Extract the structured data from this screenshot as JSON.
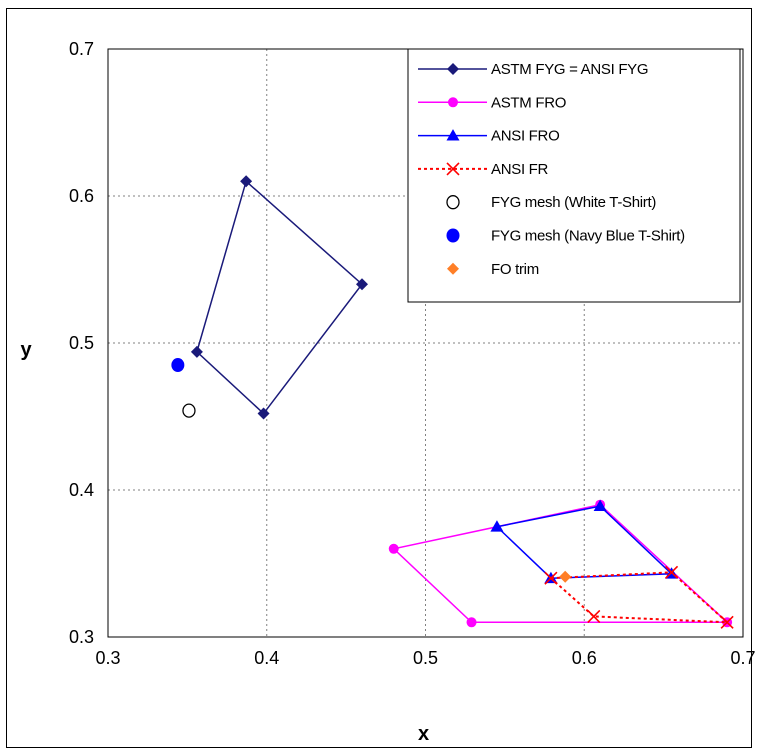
{
  "chart_data": {
    "type": "scatter",
    "xlabel": "x",
    "ylabel": "y",
    "xlim": [
      0.3,
      0.7
    ],
    "ylim": [
      0.3,
      0.7
    ],
    "x_ticks": [
      "0.3",
      "0.4",
      "0.5",
      "0.6",
      "0.7"
    ],
    "y_ticks": [
      "0.3",
      "0.4",
      "0.5",
      "0.6",
      "0.7"
    ],
    "grid": true,
    "legend_position": "top-right",
    "series": [
      {
        "name": "ASTM FYG = ANSI FYG",
        "color": "#1a1a7a",
        "marker": "diamond",
        "line": "solid",
        "x": [
          0.387,
          0.46,
          0.398,
          0.356,
          0.387
        ],
        "y": [
          0.61,
          0.54,
          0.452,
          0.494,
          0.61
        ]
      },
      {
        "name": "ASTM FRO",
        "color": "#ff00ff",
        "marker": "circle",
        "line": "solid",
        "x": [
          0.61,
          0.69,
          0.529,
          0.48,
          0.61
        ],
        "y": [
          0.39,
          0.31,
          0.31,
          0.36,
          0.39
        ]
      },
      {
        "name": "ANSI FRO",
        "color": "#0000ff",
        "marker": "triangle",
        "line": "solid",
        "x": [
          0.545,
          0.61,
          0.655,
          0.579,
          0.545
        ],
        "y": [
          0.375,
          0.389,
          0.343,
          0.34,
          0.375
        ]
      },
      {
        "name": "ANSI FR",
        "color": "#ff0000",
        "marker": "x",
        "line": "dotted",
        "x": [
          0.579,
          0.655,
          0.69,
          0.606,
          0.579
        ],
        "y": [
          0.34,
          0.344,
          0.31,
          0.314,
          0.34
        ]
      },
      {
        "name": "FYG mesh (White T-Shirt)",
        "color": "#000000",
        "marker": "open-circle",
        "line": "none",
        "x": [
          0.351
        ],
        "y": [
          0.454
        ]
      },
      {
        "name": "FYG mesh (Navy Blue T-Shirt)",
        "color": "#0000ff",
        "marker": "filled-circle",
        "line": "none",
        "x": [
          0.344
        ],
        "y": [
          0.485
        ]
      },
      {
        "name": "FO trim",
        "color": "#ff7f27",
        "marker": "diamond",
        "line": "none",
        "x": [
          0.588
        ],
        "y": [
          0.341
        ]
      }
    ]
  }
}
